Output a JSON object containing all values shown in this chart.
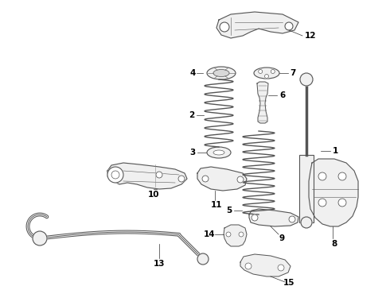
{
  "bg_color": "#ffffff",
  "line_color": "#555555",
  "fill_color": "#f0f0f0",
  "label_color": "#000000",
  "fig_w": 4.9,
  "fig_h": 3.6,
  "dpi": 100
}
